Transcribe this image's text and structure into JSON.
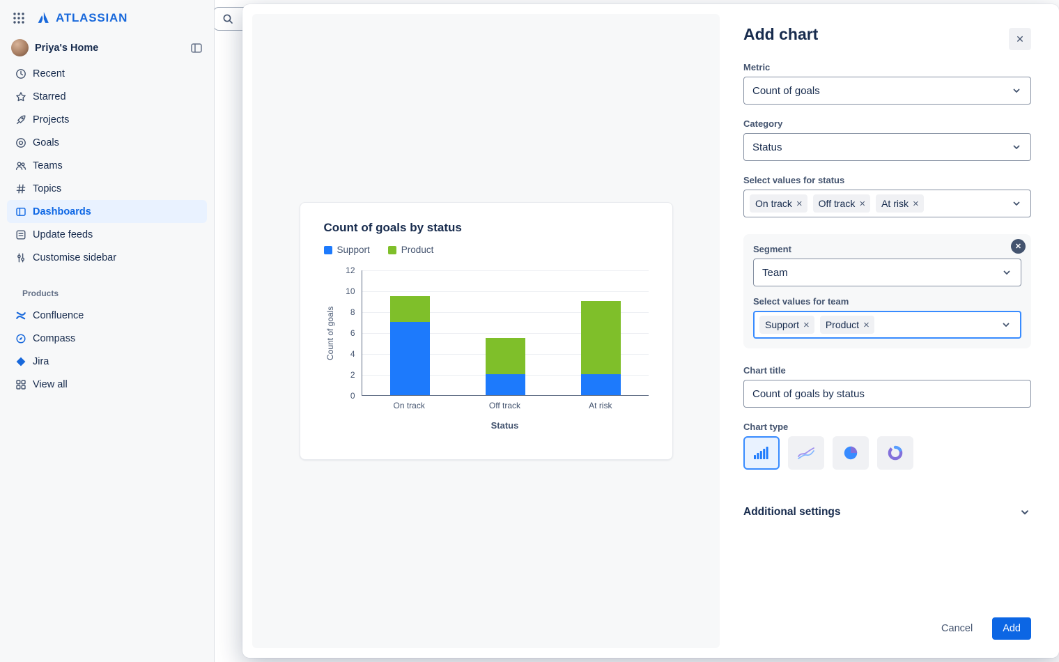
{
  "app": {
    "brand": "ATLASSIAN"
  },
  "sidebar": {
    "home": {
      "label": "Priya's Home"
    },
    "items": [
      {
        "label": "Recent",
        "icon": "clock-icon"
      },
      {
        "label": "Starred",
        "icon": "star-icon"
      },
      {
        "label": "Projects",
        "icon": "rocket-icon"
      },
      {
        "label": "Goals",
        "icon": "target-icon"
      },
      {
        "label": "Teams",
        "icon": "people-icon"
      },
      {
        "label": "Topics",
        "icon": "hash-icon"
      },
      {
        "label": "Dashboards",
        "icon": "board-icon",
        "selected": true
      },
      {
        "label": "Update feeds",
        "icon": "feed-icon"
      },
      {
        "label": "Customise sidebar",
        "icon": "sliders-icon"
      }
    ],
    "products_header": "Products",
    "products": [
      {
        "label": "Confluence",
        "icon": "confluence-icon"
      },
      {
        "label": "Compass",
        "icon": "compass-icon"
      },
      {
        "label": "Jira",
        "icon": "jira-icon"
      },
      {
        "label": "View all",
        "icon": "grid-icon"
      }
    ]
  },
  "dialog": {
    "title": "Add chart",
    "metric": {
      "label": "Metric",
      "value": "Count of goals"
    },
    "category": {
      "label": "Category",
      "value": "Status"
    },
    "status_values": {
      "label": "Select values for status",
      "tags": [
        "On track",
        "Off track",
        "At risk"
      ]
    },
    "segment": {
      "label": "Segment",
      "value": "Team",
      "values_label": "Select values for team",
      "tags": [
        "Support",
        "Product"
      ]
    },
    "chart_title": {
      "label": "Chart title",
      "value": "Count of goals by status"
    },
    "chart_type": {
      "label": "Chart type",
      "options": [
        "bar",
        "line",
        "pie",
        "donut"
      ],
      "selected": "bar"
    },
    "additional_settings_label": "Additional settings",
    "cancel_label": "Cancel",
    "add_label": "Add"
  },
  "icons": {
    "close": "✕",
    "remove": "×"
  },
  "colors": {
    "primary": "#0C66E4",
    "selected_bg": "#E9F2FF",
    "brand_blue": "#1868DB"
  },
  "chart_data": {
    "type": "bar",
    "stacked": true,
    "title": "Count of goals by status",
    "categories": [
      "On track",
      "Off track",
      "At risk"
    ],
    "series": [
      {
        "name": "Support",
        "color": "#1D7AFC",
        "values": [
          7,
          2,
          2
        ]
      },
      {
        "name": "Product",
        "color": "#7FBF2A",
        "values": [
          2.5,
          3.5,
          7
        ]
      }
    ],
    "xlabel": "Status",
    "ylabel": "Count of goals",
    "ylim": [
      0,
      12
    ],
    "yticks": [
      0,
      2,
      4,
      6,
      8,
      10,
      12
    ],
    "legend_position": "top",
    "grid": true
  }
}
